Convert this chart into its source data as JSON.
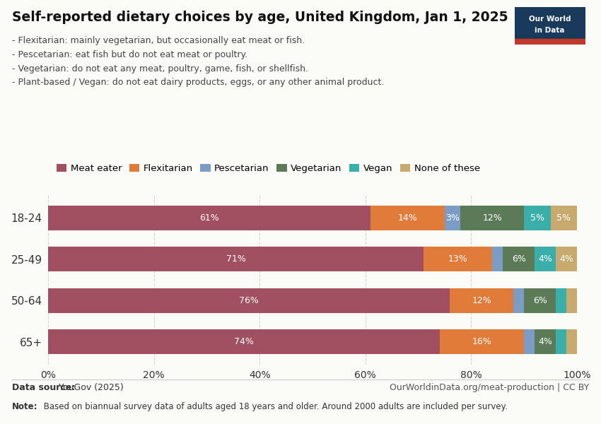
{
  "title": "Self-reported dietary choices by age, United Kingdom, Jan 1, 2025",
  "subtitle_lines": [
    "- Flexitarian: mainly vegetarian, but occasionally eat meat or fish.",
    "- Pescetarian: eat fish but do not eat meat or poultry.",
    "- Vegetarian: do not eat any meat, poultry, game, fish, or shellfish.",
    "- Plant-based / Vegan: do not eat dairy products, eggs, or any other animal product."
  ],
  "categories": [
    "18-24",
    "25-49",
    "50-64",
    "65+"
  ],
  "series": [
    {
      "name": "Meat eater",
      "color": "#a05060",
      "values": [
        61,
        71,
        76,
        74
      ],
      "labels": [
        "61%",
        "71%",
        "76%",
        "74%"
      ]
    },
    {
      "name": "Flexitarian",
      "color": "#e07b39",
      "values": [
        14,
        13,
        12,
        16
      ],
      "labels": [
        "14%",
        "13%",
        "12%",
        "16%"
      ]
    },
    {
      "name": "Pescetarian",
      "color": "#7b9cc4",
      "values": [
        3,
        2,
        2,
        2
      ],
      "labels": [
        "3%",
        "",
        "",
        ""
      ]
    },
    {
      "name": "Vegetarian",
      "color": "#5b7a56",
      "values": [
        12,
        6,
        6,
        4
      ],
      "labels": [
        "12%",
        "6%",
        "6%",
        "4%"
      ]
    },
    {
      "name": "Vegan",
      "color": "#3aafa9",
      "values": [
        5,
        4,
        2,
        2
      ],
      "labels": [
        "5%",
        "4%",
        "",
        ""
      ]
    },
    {
      "name": "None of these",
      "color": "#c8aa6e",
      "values": [
        5,
        4,
        2,
        2
      ],
      "labels": [
        "5%",
        "4%",
        "",
        ""
      ]
    }
  ],
  "xlim": [
    0,
    100
  ],
  "xticks": [
    0,
    20,
    40,
    60,
    80,
    100
  ],
  "xticklabels": [
    "0%",
    "20%",
    "40%",
    "60%",
    "80%",
    "100%"
  ],
  "data_source_bold": "Data source:",
  "data_source_rest": " YouGov (2025)",
  "url": "OurWorldinData.org/meat-production | CC BY",
  "note_bold": "Note:",
  "note_rest": " Based on biannual survey data of adults aged 18 years and older. Around 2000 adults are included per survey.",
  "owid_box_color": "#1a3a5c",
  "owid_box_red": "#c0392b",
  "bg_color": "#fafaf7",
  "grid_color": "#cccccc",
  "bar_height": 0.6
}
